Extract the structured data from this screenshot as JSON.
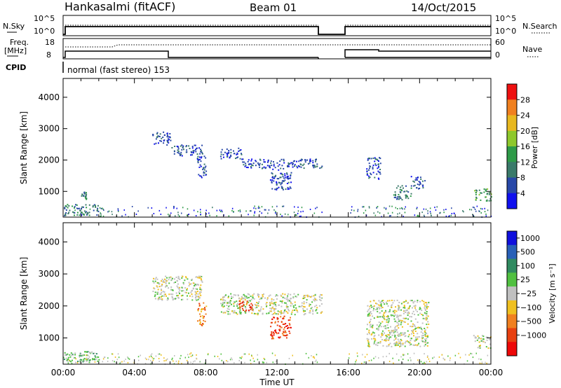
{
  "header": {
    "station": "Hankasalmi (fitACF)",
    "beam": "Beam 01",
    "date": "14/Oct/2015"
  },
  "param_panels": {
    "nsky_label": "N.Sky",
    "nsearch_label": "N.Search",
    "freq_label_1": "Freq.",
    "freq_label_2": "[MHz]",
    "nave_label": "Nave",
    "cpid_label": "CPID",
    "cpid_value": "normal (fast stereo) 153",
    "noise_ticks": [
      "10^5",
      "10^0"
    ],
    "noise_ticks_right": [
      "10^5",
      "10^0"
    ],
    "freq_ticks": [
      "18",
      "8"
    ],
    "nave_ticks": [
      "60",
      "0"
    ]
  },
  "chart_data": [
    {
      "type": "heatmap",
      "name": "power",
      "ylabel": "Slant Range [km]",
      "xlabel": "",
      "yticks": [
        "1000",
        "2000",
        "3000",
        "4000"
      ],
      "ylim": [
        180,
        4600
      ],
      "xlim": [
        0,
        24
      ],
      "colorbar_label": "Power [dB]",
      "colorbar_ticks": [
        "4",
        "8",
        "12",
        "16",
        "20",
        "24",
        "28"
      ],
      "colorbar_colors": [
        "#1010ee",
        "#2848a8",
        "#3a7a6a",
        "#2e9a48",
        "#8ec82c",
        "#e8b820",
        "#f08020",
        "#ee1010"
      ],
      "echo_regions": [
        {
          "t0": 5.0,
          "t1": 6.0,
          "r0": 2500,
          "r1": 2950,
          "level": 1
        },
        {
          "t0": 6.0,
          "t1": 7.8,
          "r0": 2150,
          "r1": 2500,
          "level": 1
        },
        {
          "t0": 7.5,
          "t1": 8.0,
          "r0": 1400,
          "r1": 2150,
          "level": 1
        },
        {
          "t0": 8.8,
          "t1": 10.0,
          "r0": 2050,
          "r1": 2400,
          "level": 1
        },
        {
          "t0": 10.0,
          "t1": 14.5,
          "r0": 1750,
          "r1": 2050,
          "level": 1
        },
        {
          "t0": 11.6,
          "t1": 12.8,
          "r0": 1050,
          "r1": 1750,
          "level": 1
        },
        {
          "t0": 17.0,
          "t1": 17.8,
          "r0": 1400,
          "r1": 2100,
          "level": 1
        },
        {
          "t0": 18.5,
          "t1": 19.5,
          "r0": 750,
          "r1": 1200,
          "level": 2
        },
        {
          "t0": 19.5,
          "t1": 20.3,
          "r0": 1100,
          "r1": 1500,
          "level": 1
        },
        {
          "t0": 23.0,
          "t1": 24.0,
          "r0": 700,
          "r1": 1100,
          "level": 3
        },
        {
          "t0": 0.0,
          "t1": 2.0,
          "r0": 250,
          "r1": 600,
          "level": 2
        },
        {
          "t0": 1.0,
          "t1": 1.3,
          "r0": 750,
          "r1": 1000,
          "level": 2
        }
      ],
      "gap": [
        14.5,
        16.0
      ]
    },
    {
      "type": "heatmap",
      "name": "velocity",
      "ylabel": "Slant Range [km]",
      "xlabel": "Time UT",
      "xticks": [
        "00:00",
        "04:00",
        "08:00",
        "12:00",
        "16:00",
        "20:00",
        "00:00"
      ],
      "yticks": [
        "1000",
        "2000",
        "3000",
        "4000"
      ],
      "ylim": [
        180,
        4600
      ],
      "xlim": [
        0,
        24
      ],
      "colorbar_label": "Velocity [m s⁻¹]",
      "colorbar_ticks": [
        "1000",
        "500",
        "100",
        "25",
        "−25",
        "−100",
        "−500",
        "−1000"
      ],
      "colorbar_colors": [
        "#1010dd",
        "#2860b8",
        "#308a60",
        "#50c040",
        "#c0c0c0",
        "#f0c020",
        "#f08020",
        "#e84010",
        "#ee0808"
      ],
      "echo_regions": [
        {
          "t0": 5.0,
          "t1": 7.8,
          "r0": 2200,
          "r1": 2950,
          "level": 4
        },
        {
          "t0": 7.5,
          "t1": 8.0,
          "r0": 1400,
          "r1": 2150,
          "level": 6
        },
        {
          "t0": 8.8,
          "t1": 14.5,
          "r0": 1750,
          "r1": 2400,
          "level": 4
        },
        {
          "t0": 9.8,
          "t1": 10.6,
          "r0": 1850,
          "r1": 2200,
          "level": 7
        },
        {
          "t0": 11.6,
          "t1": 12.8,
          "r0": 1000,
          "r1": 1700,
          "level": 7
        },
        {
          "t0": 17.0,
          "t1": 20.5,
          "r0": 750,
          "r1": 2200,
          "level": 4
        },
        {
          "t0": 23.0,
          "t1": 24.0,
          "r0": 700,
          "r1": 1100,
          "level": 4
        },
        {
          "t0": 0.0,
          "t1": 2.0,
          "r0": 250,
          "r1": 600,
          "level": 3
        }
      ],
      "gap": [
        14.5,
        16.0
      ]
    }
  ]
}
